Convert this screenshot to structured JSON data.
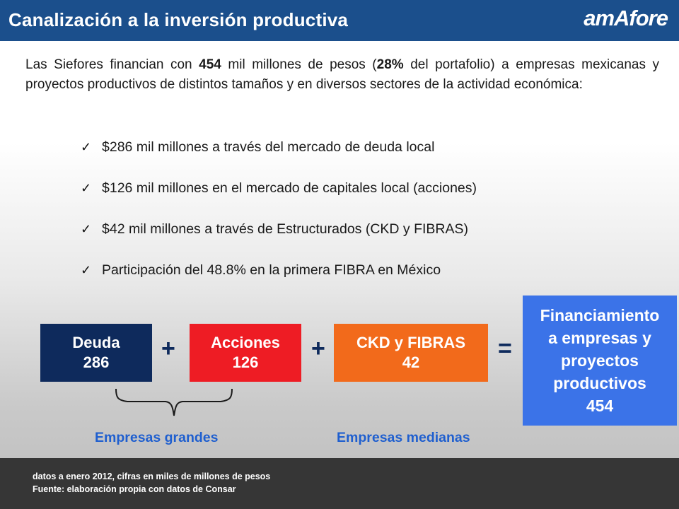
{
  "header": {
    "title": "Canalización a la inversión productiva",
    "logo_text": "amAfore",
    "bg_color": "#1b4f8c"
  },
  "intro": {
    "part1": "Las Siefores financian con ",
    "amount": "454",
    "part2": " mil millones de pesos (",
    "percent": "28%",
    "part3": " del portafolio) a empresas mexicanas y proyectos productivos de distintos tamaños y en diversos sectores de la actividad económica:"
  },
  "bullets": [
    "$286 mil millones a través del mercado de deuda local",
    "$126 mil millones en  el mercado de capitales local (acciones)",
    "$42 mil millones a través de Estructurados (CKD y FIBRAS)",
    "Participación del 48.8% en la primera FIBRA en México"
  ],
  "check_icon": "✓",
  "diagram": {
    "deuda": {
      "label": "Deuda",
      "value": "286",
      "color": "#0e2a5c"
    },
    "acciones": {
      "label": "Acciones",
      "value": "126",
      "color": "#ee1c24"
    },
    "ckd": {
      "label": "CKD y FIBRAS",
      "value": "42",
      "color": "#f26a1b"
    },
    "total": {
      "line1": "Financiamiento",
      "line2": "a empresas y",
      "line3": "proyectos",
      "line4": "productivos",
      "value": "454",
      "color": "#3b73e8"
    },
    "plus": "+",
    "equals": "=",
    "group_grandes": "Empresas grandes",
    "group_medianas": "Empresas medianas"
  },
  "footer": {
    "note1": "datos a enero 2012, cifras en miles de millones de pesos",
    "note2": "Fuente: elaboración propia con datos de Consar"
  }
}
